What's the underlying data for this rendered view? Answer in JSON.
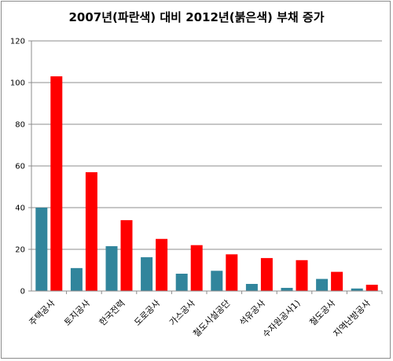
{
  "chart_data": {
    "type": "bar",
    "title": "2007년(파란색) 대비 2012년(붉은색) 부채 증가",
    "xlabel": "",
    "ylabel": "",
    "ylim": [
      0,
      120
    ],
    "yticks": [
      0,
      20,
      40,
      60,
      80,
      100,
      120
    ],
    "grid": true,
    "legend": "none",
    "categories": [
      "주택공사",
      "토지공사",
      "한국전력",
      "도로공사",
      "가스공사",
      "철도시설공단",
      "석유공사",
      "수자원공사1)",
      "철도공사",
      "지역난방공사"
    ],
    "series": [
      {
        "color": "#31859c",
        "values": [
          40,
          11,
          21.5,
          16.2,
          8.3,
          9.7,
          3.4,
          1.5,
          5.8,
          1.2
        ]
      },
      {
        "color": "#ff0000",
        "values": [
          103,
          57,
          34,
          25,
          22,
          17.6,
          15.8,
          14.8,
          9.2,
          3
        ]
      }
    ]
  }
}
